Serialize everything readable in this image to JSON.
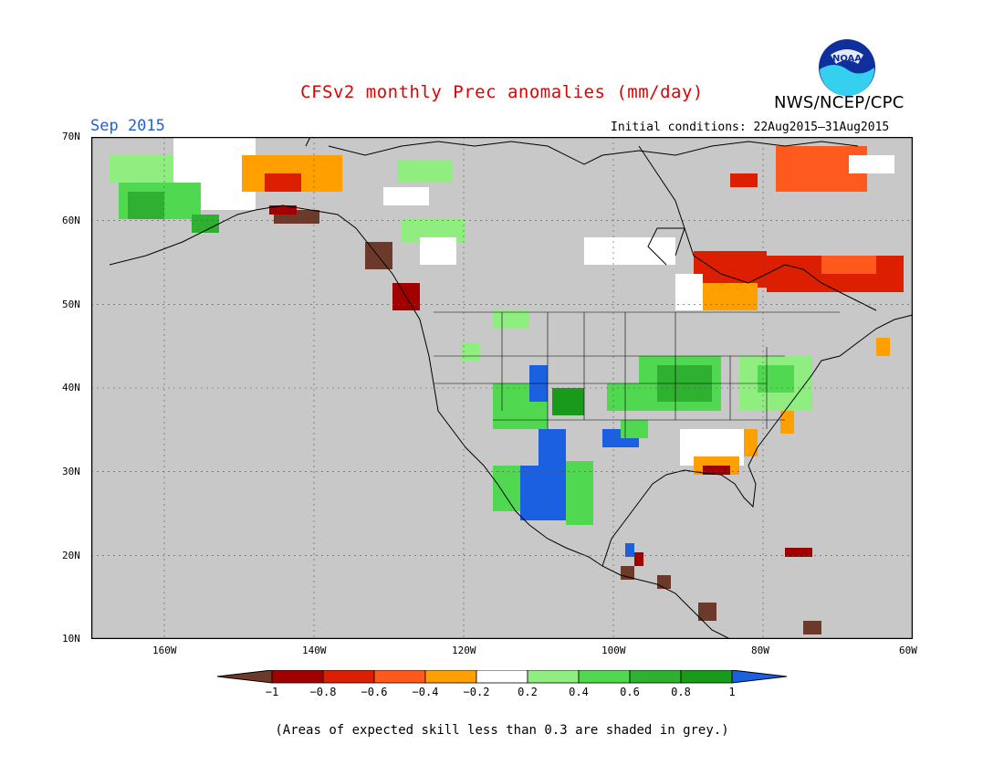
{
  "title": "CFSv2 monthly Prec anomalies (mm/day)",
  "agency": "NWS/NCEP/CPC",
  "logo_text": "NOAA",
  "month": "Sep 2015",
  "initial_conditions": "Initial conditions: 22Aug2015–31Aug2015",
  "footnote": "(Areas of expected skill less than 0.3 are shaded in grey.)",
  "lat_labels": [
    "70N",
    "60N",
    "50N",
    "40N",
    "30N",
    "20N",
    "10N"
  ],
  "lon_labels": [
    "160W",
    "140W",
    "120W",
    "100W",
    "80W",
    "60W"
  ],
  "colorbar": {
    "ticks": [
      "−1",
      "−0.8",
      "−0.6",
      "−0.4",
      "−0.2",
      "0.2",
      "0.4",
      "0.6",
      "0.8",
      "1"
    ],
    "colors": [
      "#6b3a2a",
      "#a00000",
      "#dc1f00",
      "#ff5a1e",
      "#ff9f00",
      "#ffffff",
      "#90ee80",
      "#50d850",
      "#30b030",
      "#1a9a1a",
      "#1a60e0"
    ]
  },
  "colors": {
    "land_grey": "#c8c8c8",
    "title_red": "#e00000",
    "month_blue": "#2060e0"
  }
}
